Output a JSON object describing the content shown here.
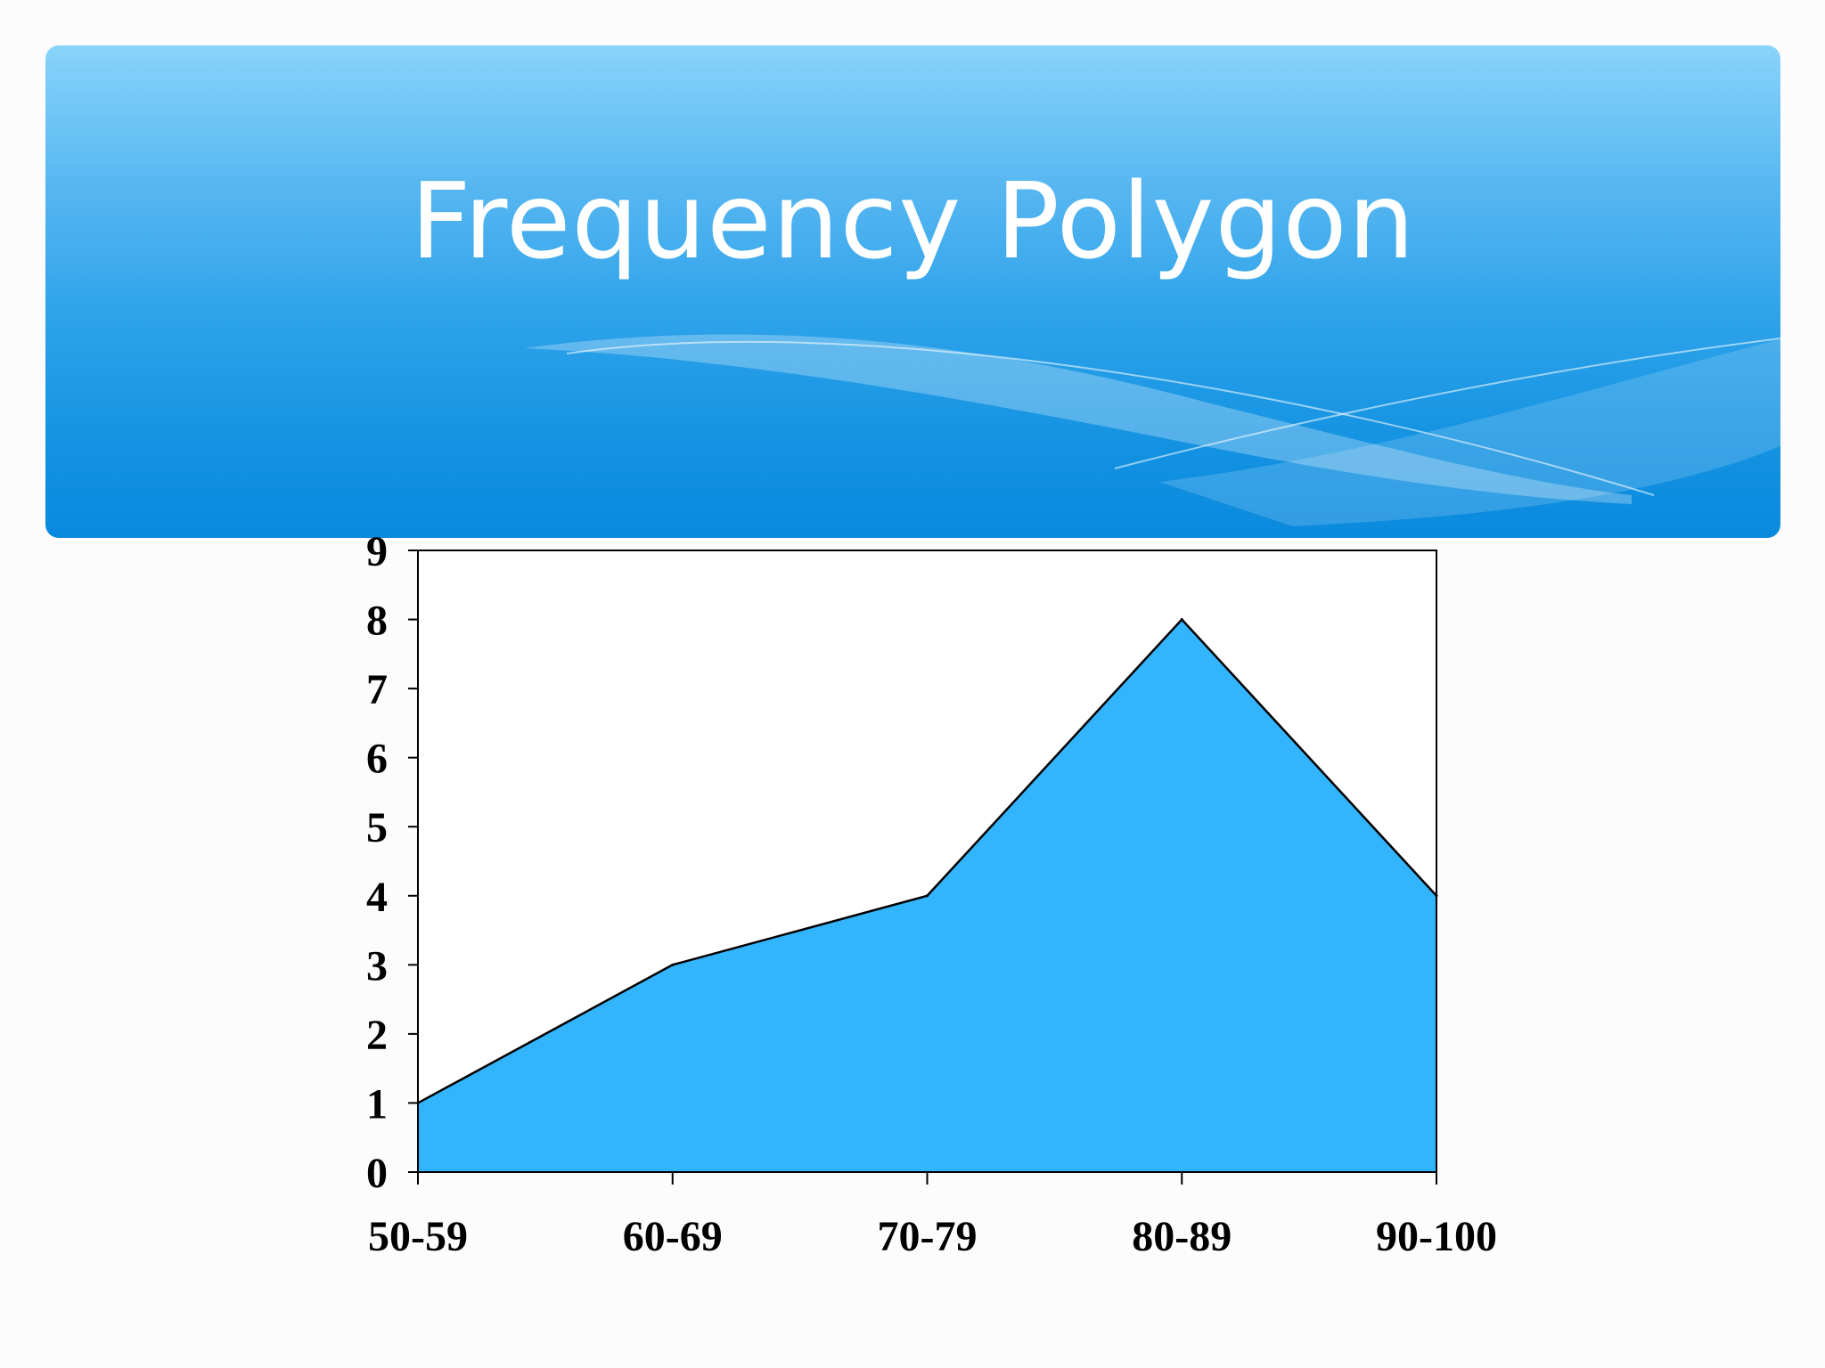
{
  "slide": {
    "title": "Frequency Polygon"
  },
  "colors": {
    "area_fill": "#33b5fd",
    "line": "#000000",
    "header_top": "#88d4fb",
    "header_bottom": "#0a8ade"
  },
  "chart_data": {
    "type": "area",
    "title": "",
    "xlabel": "",
    "ylabel": "",
    "categories": [
      "50-59",
      "60-69",
      "70-79",
      "80-89",
      "90-100"
    ],
    "values": [
      1,
      3,
      4,
      8,
      4
    ],
    "ylim": [
      0,
      9
    ],
    "yticks": [
      0,
      1,
      2,
      3,
      4,
      5,
      6,
      7,
      8,
      9
    ],
    "grid": false,
    "legend": "none"
  }
}
